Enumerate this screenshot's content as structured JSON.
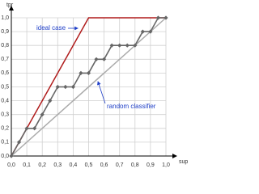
{
  "chart_data": {
    "type": "line",
    "x_label": "sup",
    "y_label": "tpr",
    "xlim": [
      0,
      1
    ],
    "ylim": [
      0,
      1
    ],
    "xticks": [
      {
        "value": 0,
        "label": "0,0"
      },
      {
        "value": 0.1,
        "label": "0,1"
      },
      {
        "value": 0.2,
        "label": "0,2"
      },
      {
        "value": 0.3,
        "label": "0,3"
      },
      {
        "value": 0.4,
        "label": "0,4"
      },
      {
        "value": 0.5,
        "label": "0,5"
      },
      {
        "value": 0.6,
        "label": "0,6"
      },
      {
        "value": 0.7,
        "label": "0,7"
      },
      {
        "value": 0.8,
        "label": "0,8"
      },
      {
        "value": 0.9,
        "label": "0,9"
      },
      {
        "value": 1,
        "label": "1,0"
      }
    ],
    "yticks": [
      {
        "value": 0,
        "label": "0,0"
      },
      {
        "value": 0.1,
        "label": "0,1"
      },
      {
        "value": 0.2,
        "label": "0,2"
      },
      {
        "value": 0.3,
        "label": "0,3"
      },
      {
        "value": 0.4,
        "label": "0,4"
      },
      {
        "value": 0.5,
        "label": "0,5"
      },
      {
        "value": 0.6,
        "label": "0,6"
      },
      {
        "value": 0.7,
        "label": "0,7"
      },
      {
        "value": 0.8,
        "label": "0,8"
      },
      {
        "value": 0.9,
        "label": "0,9"
      },
      {
        "value": 1,
        "label": "1,0"
      }
    ],
    "grid": true,
    "series": [
      {
        "name": "ideal case",
        "color": "#b01c1c",
        "x": [
          0,
          0.5,
          1
        ],
        "values": [
          0,
          1,
          1
        ]
      },
      {
        "name": "random classifier",
        "color": "#aaaaaa",
        "x": [
          0,
          1
        ],
        "values": [
          0,
          1
        ]
      },
      {
        "color": "#666666",
        "markers": true,
        "x": [
          0,
          0.05,
          0.1,
          0.15,
          0.2,
          0.25,
          0.3,
          0.35,
          0.4,
          0.45,
          0.5,
          0.55,
          0.6,
          0.65,
          0.7,
          0.75,
          0.8,
          0.85,
          0.9,
          0.95,
          1
        ],
        "values": [
          0,
          0.1,
          0.2,
          0.2,
          0.3,
          0.4,
          0.5,
          0.5,
          0.5,
          0.6,
          0.6,
          0.7,
          0.7,
          0.8,
          0.8,
          0.8,
          0.8,
          0.9,
          0.9,
          1,
          1
        ]
      }
    ]
  }
}
